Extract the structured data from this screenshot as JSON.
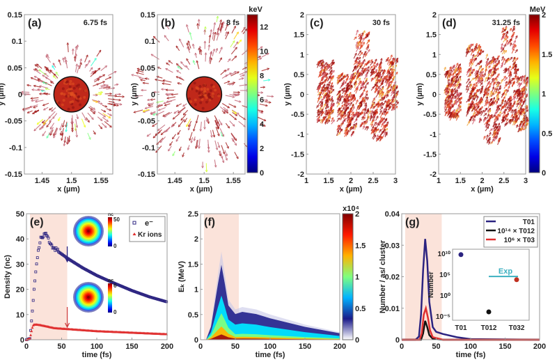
{
  "chart_data": [
    {
      "panel": "(a)",
      "type": "quiver",
      "annotation": "6.75 fs",
      "xlabel": "x (µm)",
      "ylabel": "y (µm)",
      "xlim": [
        1.42,
        1.57
      ],
      "ylim": [
        -0.15,
        0.15
      ],
      "xticks": [
        "1.45",
        "1.5",
        "1.55"
      ],
      "yticks": [
        "-0.15",
        "-0.1",
        "-0.05",
        "0",
        "0.05",
        "0.1",
        "0.15"
      ],
      "colorbar": "keV",
      "cluster_center": [
        1.5,
        0
      ],
      "cluster_radius": 0.03
    },
    {
      "panel": "(b)",
      "type": "quiver",
      "annotation": "8 fs",
      "xlabel": "x (µm)",
      "ylabel": "y (µm)",
      "xlim": [
        1.42,
        1.57
      ],
      "ylim": [
        -0.15,
        0.15
      ],
      "xticks": [
        "1.45",
        "1.5",
        "1.55"
      ],
      "yticks": [
        "-0.15",
        "-0.1",
        "-0.05",
        "0",
        "0.05",
        "0.1",
        "0.15"
      ],
      "colorbar": {
        "unit": "keV",
        "range": [
          0,
          13
        ],
        "ticks": [
          "0",
          "2",
          "4",
          "6",
          "8",
          "10",
          "12"
        ]
      },
      "cluster_center": [
        1.5,
        0
      ],
      "cluster_radius": 0.03
    },
    {
      "panel": "(c)",
      "type": "quiver",
      "annotation": "30 fs",
      "xlabel": "x (µm)",
      "ylabel": "y (µm)",
      "xlim": [
        1,
        3
      ],
      "ylim": [
        -2,
        2
      ],
      "xticks": [
        "1",
        "1.5",
        "2",
        "2.5",
        "3"
      ],
      "yticks": [
        "-2",
        "-1.5",
        "-1",
        "-0.5",
        "0",
        "0.5",
        "1",
        "1.5",
        "2"
      ],
      "colorbar": "MeV"
    },
    {
      "panel": "(d)",
      "type": "quiver",
      "annotation": "31.25 fs",
      "xlabel": "x (µm)",
      "ylabel": "y (µm)",
      "xlim": [
        1,
        3
      ],
      "ylim": [
        -2,
        2
      ],
      "xticks": [
        "1",
        "1.5",
        "2",
        "2.5",
        "3"
      ],
      "yticks": [
        "-2",
        "-1.5",
        "-1",
        "-0.5",
        "0",
        "0.5",
        "1",
        "1.5",
        "2"
      ],
      "colorbar": {
        "unit": "MeV",
        "range": [
          0,
          2
        ],
        "ticks": [
          "0",
          "0.5",
          "1",
          "1.5",
          "2"
        ]
      }
    },
    {
      "panel": "(e)",
      "type": "scatter",
      "xlabel": "time (fs)",
      "ylabel": "Density (nc)",
      "xlim": [
        0,
        200
      ],
      "ylim": [
        0,
        50
      ],
      "xticks": [
        "0",
        "50",
        "100",
        "150",
        "200"
      ],
      "yticks": [
        "0",
        "10",
        "20",
        "30",
        "40",
        "50"
      ],
      "shaded_range": [
        5,
        58
      ],
      "legend": {
        "placement": "top-right",
        "entries": [
          "e⁻",
          "Kr ions"
        ]
      },
      "series": [
        {
          "name": "e⁻",
          "color": "#2b2380",
          "marker": "square",
          "x": [
            0,
            5,
            8,
            12,
            16,
            20,
            25,
            30,
            35,
            40,
            50,
            60,
            80,
            100,
            120,
            150,
            175,
            200
          ],
          "y": [
            0,
            0.5,
            10,
            24,
            34,
            40,
            42,
            41,
            38,
            36,
            34,
            32,
            28.5,
            25.5,
            23,
            19.5,
            17,
            15
          ]
        },
        {
          "name": "Kr ions",
          "color": "#e03030",
          "marker": "triangle",
          "x": [
            0,
            5,
            8,
            10,
            15,
            20,
            30,
            40,
            60,
            80,
            100,
            150,
            200
          ],
          "y": [
            0,
            0.5,
            4.5,
            6,
            6,
            5.8,
            5.2,
            4.6,
            4.2,
            3.8,
            3.4,
            2.8,
            2.2
          ]
        }
      ],
      "insets": [
        {
          "colorbar_label": "nc",
          "range": [
            0,
            50
          ],
          "ticks": [
            "0",
            "50"
          ]
        },
        {
          "colorbar_label": "nc",
          "range": [
            0,
            6
          ],
          "ticks": [
            "0",
            "6"
          ]
        }
      ],
      "arrows_at_fs": [
        58,
        58
      ]
    },
    {
      "panel": "(f)",
      "type": "heatmap",
      "xlabel": "time (fs)",
      "ylabel": "Eₖ (MeV)",
      "xlim": [
        0,
        200
      ],
      "ylim": [
        0,
        2.5
      ],
      "xticks": [
        "0",
        "50",
        "100",
        "150",
        "200"
      ],
      "yticks": [
        "0",
        "0.5",
        "1",
        "1.5",
        "2",
        "2.5"
      ],
      "shaded_range": [
        5,
        55
      ],
      "colorbar": {
        "label": "x10⁴",
        "range": [
          0,
          2
        ],
        "ticks": [
          "0",
          "0.5",
          "1",
          "1.5",
          "2"
        ]
      },
      "envelope": {
        "t": [
          8,
          15,
          20,
          25,
          30,
          35,
          40,
          50,
          60,
          80,
          100,
          150,
          200
        ],
        "emax": [
          0,
          0.3,
          0.8,
          1.3,
          1.75,
          1.3,
          0.8,
          0.6,
          0.65,
          0.6,
          0.5,
          0.3,
          0.15
        ]
      }
    },
    {
      "panel": "(g)",
      "type": "line",
      "xlabel": "time (fs)",
      "ylabel": "Number / as/ cluster",
      "xlim": [
        0,
        200
      ],
      "ylim": [
        0,
        0.04
      ],
      "xticks": [
        "0",
        "50",
        "100",
        "150",
        "200"
      ],
      "yticks": [
        "0",
        "0.01",
        "0.02",
        "0.03",
        "0.04"
      ],
      "shaded_range": [
        5,
        58
      ],
      "legend": {
        "placement": "top-right"
      },
      "series": [
        {
          "name": "T01",
          "legend_label": "T01",
          "color": "#2b2380",
          "x": [
            0,
            20,
            25,
            28,
            31,
            34,
            37,
            40,
            45,
            50,
            60,
            80,
            100,
            200
          ],
          "y": [
            0,
            0,
            0.001,
            0.008,
            0.022,
            0.032,
            0.025,
            0.012,
            0.004,
            0.0025,
            0.0018,
            0.0008,
            0.0002,
            0
          ]
        },
        {
          "name": "T012",
          "legend_label": "10¹⁴ × T012",
          "color": "#111111",
          "x": [
            0,
            28,
            31,
            34,
            37,
            40,
            45,
            60,
            200
          ],
          "y": [
            0,
            0,
            0.002,
            0.006,
            0.004,
            0.0015,
            0.0003,
            0,
            0
          ]
        },
        {
          "name": "T03",
          "legend_label": "10⁶ × T03",
          "color": "#e03030",
          "x": [
            0,
            26,
            29,
            32,
            35,
            38,
            41,
            45,
            60,
            200
          ],
          "y": [
            0,
            0,
            0.002,
            0.008,
            0.01,
            0.007,
            0.003,
            0.0008,
            0,
            0
          ]
        }
      ],
      "inset": {
        "type": "scatter",
        "ylabel": "Number",
        "yscale": "log",
        "ylim": [
          1e-06,
          100000000000.0
        ],
        "yticks": [
          "10⁻⁵",
          "10⁰",
          "10⁵",
          "10¹⁰"
        ],
        "categories": [
          "T01",
          "T012",
          "T032"
        ],
        "values": [
          5000000000.0,
          0.0001,
          5000.0
        ],
        "colors": [
          "#2b2380",
          "#111111",
          "#c03020"
        ],
        "reference": {
          "label": "Exp",
          "value": 30000.0,
          "color": "#3bb0c0"
        }
      }
    }
  ]
}
